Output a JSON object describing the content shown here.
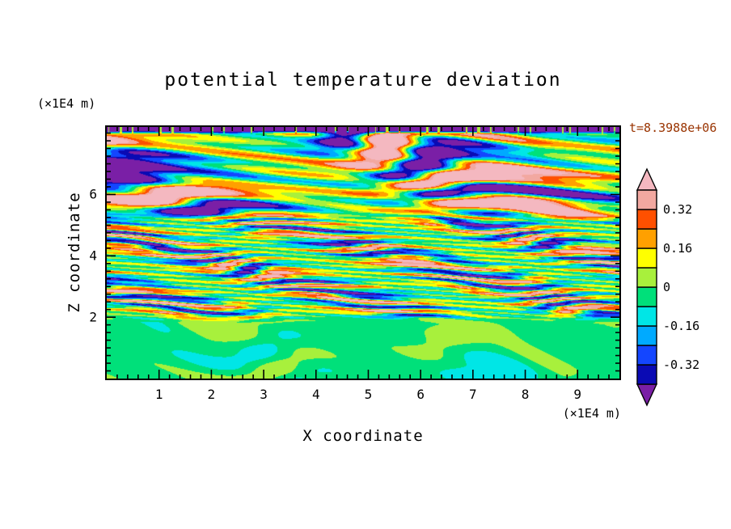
{
  "title": "potential temperature deviation",
  "timestamp": {
    "text": "t=8.3988e+06",
    "color": "#993300"
  },
  "axes": {
    "x": {
      "label": "X coordinate",
      "unit": "(×1E4 m)",
      "min": 0,
      "max": 9.8,
      "major_ticks": [
        1,
        2,
        3,
        4,
        5,
        6,
        7,
        8,
        9
      ],
      "minor_step": 0.2
    },
    "z": {
      "label": "Z coordinate",
      "unit": "(×1E4 m)",
      "min": 0,
      "max": 8.2,
      "major_ticks": [
        2,
        4,
        6
      ],
      "minor_step": 0.25
    }
  },
  "colorbar": {
    "orientation": "vertical",
    "labels": [
      {
        "text": "0.32",
        "boundary": 9
      },
      {
        "text": "0.16",
        "boundary": 7
      },
      {
        "text": "0",
        "boundary": 5
      },
      {
        "text": "-0.16",
        "boundary": 3
      },
      {
        "text": "-0.32",
        "boundary": 1
      }
    ]
  },
  "chart_data": {
    "type": "heatmap",
    "subtype": "filled-contour",
    "title": "potential temperature deviation",
    "xlabel": "X coordinate",
    "ylabel": "Z coordinate",
    "x_unit": "(×1E4 m)",
    "z_unit": "(×1E4 m)",
    "time_annotation": "t=8.3988e+06",
    "xlim": [
      0,
      9.8
    ],
    "zlim": [
      0,
      8.2
    ],
    "grid": false,
    "legend_position": "right-colorbar",
    "contour_levels": [
      -0.4,
      -0.32,
      -0.24,
      -0.16,
      -0.08,
      0,
      0.08,
      0.16,
      0.24,
      0.32,
      0.4
    ],
    "band_colors": [
      "#0a0ab4",
      "#1446ff",
      "#00aaff",
      "#00e6e6",
      "#00e07a",
      "#a8f03c",
      "#ffff00",
      "#ffa000",
      "#ff5000",
      "#f2a8a0"
    ],
    "under_color": "#7a1fa6",
    "over_color": "#f4b8c0",
    "field_summary": [
      "z 0-2 (x1E4 m): quiescent layer, weak anomalies -0.08..0.08 (green with yellow-green swirls)",
      "z 2-5.3: fine horizontally-elongated turbulent layers spanning full range -0.4..0.4 (cyan/blue/navy/yellow/orange/red streaks)",
      "z 5.3-8.2: broad gravity-wave bands alternating beyond +0.32 (salmon) and below -0.40 (purple)",
      "top edge: thin strip below -0.40 (purple) with small positive specks"
    ],
    "field_model": {
      "blend_halfwidth": 0.25,
      "cap": {
        "z_start": 7.95,
        "ramp": 0.15,
        "low_value": -0.55,
        "speck_value": 0.03,
        "speck_threshold": 0.5
      },
      "regions": [
        {
          "name": "boundary-layer",
          "z": [
            0,
            2
          ],
          "bias": -0.03,
          "amplitude": 0.085,
          "vertical_scale": 2.8,
          "horizontal_scale": 0.85,
          "seed": 1.7
        },
        {
          "name": "turbulent-core",
          "z": [
            2,
            5.3
          ],
          "bias": 0.0,
          "amplitude": 0.46,
          "vertical_scale": 15.5,
          "horizontal_scale": 1.05,
          "seed": 4.2
        },
        {
          "name": "wave-region",
          "z": [
            5.3,
            8.2
          ],
          "bias": 0.04,
          "amplitude": 0.65,
          "vertical_scale": 5.2,
          "horizontal_scale": 0.6,
          "seed": 2.6
        }
      ]
    }
  }
}
